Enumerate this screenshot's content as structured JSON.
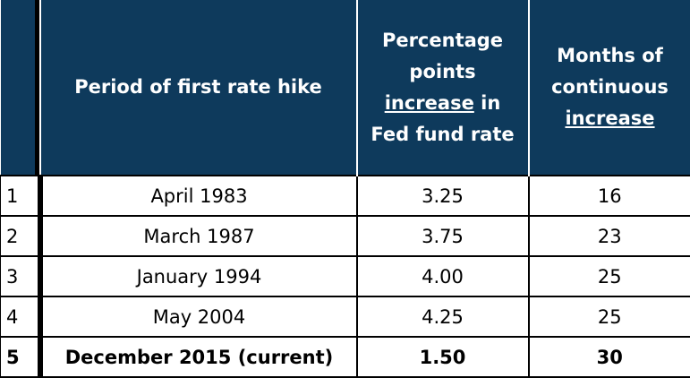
{
  "table": {
    "header": {
      "index": "",
      "period": "Period of first rate hike",
      "pct_line1": "Percentage",
      "pct_line2": "points",
      "pct_line3_underlined": "increase",
      "pct_line3_rest": " in",
      "pct_line4": "Fed fund rate",
      "months_line1": "Months of",
      "months_line2": "continuous",
      "months_line3_underlined": "increase"
    },
    "rows": [
      {
        "index": "1",
        "period": "April 1983",
        "pct": "3.25",
        "months": "16"
      },
      {
        "index": "2",
        "period": "March 1987",
        "pct": "3.75",
        "months": "23"
      },
      {
        "index": "3",
        "period": "January 1994",
        "pct": "4.00",
        "months": "25"
      },
      {
        "index": "4",
        "period": "May 2004",
        "pct": "4.25",
        "months": "25"
      },
      {
        "index": "5",
        "period": "December 2015 (current)",
        "pct": "1.50",
        "months": "30"
      }
    ]
  }
}
